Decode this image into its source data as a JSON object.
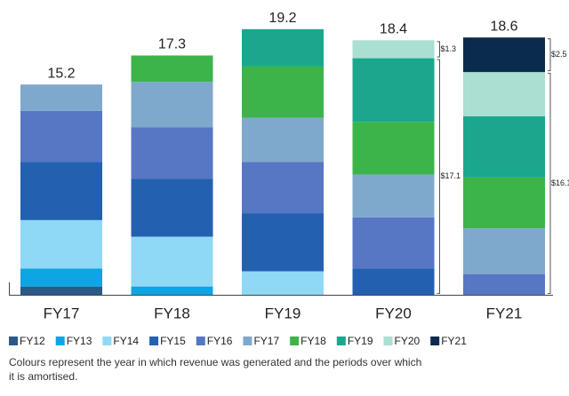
{
  "chart_data": {
    "type": "stacked-bar",
    "categories": [
      "FY17",
      "FY18",
      "FY19",
      "FY20",
      "FY21"
    ],
    "totals": [
      15.2,
      17.3,
      19.2,
      18.4,
      18.6
    ],
    "series": [
      {
        "name": "FY12",
        "color": "#2b5a86",
        "values": [
          0.6,
          null,
          null,
          null,
          null
        ]
      },
      {
        "name": "FY13",
        "color": "#0ea5e4",
        "values": [
          1.3,
          0.6,
          null,
          null,
          null
        ]
      },
      {
        "name": "FY14",
        "color": "#8fd8f6",
        "values": [
          3.5,
          3.6,
          1.7,
          null,
          null
        ]
      },
      {
        "name": "FY15",
        "color": "#2360b0",
        "values": [
          4.2,
          4.2,
          4.2,
          1.9,
          null
        ]
      },
      {
        "name": "FY16",
        "color": "#5677c4",
        "values": [
          3.7,
          3.7,
          3.7,
          3.7,
          1.5
        ]
      },
      {
        "name": "FY17",
        "color": "#7fa9cc",
        "values": [
          1.9,
          3.3,
          3.2,
          3.1,
          3.3
        ]
      },
      {
        "name": "FY18",
        "color": "#3cb44a",
        "values": [
          null,
          1.9,
          3.7,
          3.8,
          3.7
        ]
      },
      {
        "name": "FY19",
        "color": "#1aa78e",
        "values": [
          null,
          null,
          2.7,
          4.6,
          4.4
        ]
      },
      {
        "name": "FY20",
        "color": "#aadfd2",
        "values": [
          null,
          null,
          null,
          1.3,
          3.2
        ]
      },
      {
        "name": "FY21",
        "color": "#0b2b4e",
        "values": [
          null,
          null,
          null,
          null,
          2.5
        ]
      }
    ],
    "annotations": [
      {
        "bar": 3,
        "from_series": 9,
        "label": "$1.3",
        "range": [
          8,
          8
        ]
      },
      {
        "bar": 3,
        "from_series": 0,
        "label": "$17.1",
        "range": [
          0,
          7
        ]
      },
      {
        "bar": 4,
        "from_series": 9,
        "label": "$2.5",
        "range": [
          9,
          9
        ]
      },
      {
        "bar": 4,
        "from_series": 0,
        "label": "$16.1",
        "range": [
          0,
          8
        ]
      }
    ],
    "footnote": [
      "Colours represent the year in which revenue was generated and the periods over which",
      "it is amortised."
    ]
  }
}
